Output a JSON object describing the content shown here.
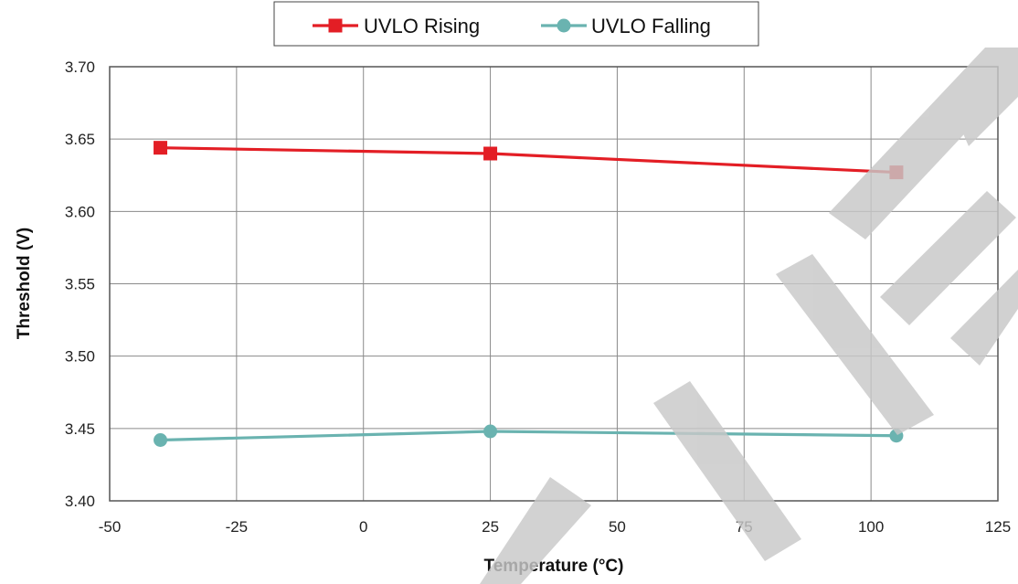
{
  "chart_data": {
    "type": "line",
    "title": "",
    "xlabel": "Temperature (°C)",
    "ylabel": "Threshold (V)",
    "xlim": [
      -50,
      125
    ],
    "ylim": [
      3.4,
      3.7
    ],
    "xticks": [
      -50,
      -25,
      0,
      25,
      50,
      75,
      100,
      125
    ],
    "yticks": [
      3.4,
      3.45,
      3.5,
      3.55,
      3.6,
      3.65,
      3.7
    ],
    "xtick_labels": [
      "-50",
      "-25",
      "0",
      "25",
      "50",
      "75",
      "100",
      "125"
    ],
    "ytick_labels": [
      "3.40",
      "3.45",
      "3.50",
      "3.55",
      "3.60",
      "3.65",
      "3.70"
    ],
    "grid": true,
    "legend_position": "top",
    "watermark": "LIFE",
    "series": [
      {
        "name": "UVLO Rising",
        "marker": "square",
        "color": "#e31e25",
        "x": [
          -40,
          25,
          105
        ],
        "y": [
          3.644,
          3.64,
          3.627
        ]
      },
      {
        "name": "UVLO Falling",
        "marker": "circle",
        "color": "#6ab3b0",
        "x": [
          -40,
          25,
          105
        ],
        "y": [
          3.442,
          3.448,
          3.445
        ]
      }
    ]
  }
}
